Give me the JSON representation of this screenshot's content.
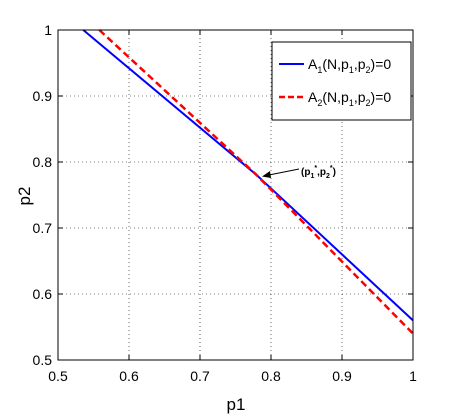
{
  "chart_data": {
    "type": "line",
    "title": "",
    "xlabel": "p1",
    "ylabel": "p2",
    "xlim": [
      0.5,
      1
    ],
    "ylim": [
      0.5,
      1
    ],
    "xticks": [
      "0.5",
      "0.6",
      "0.7",
      "0.8",
      "0.9",
      "1"
    ],
    "yticks": [
      "0.5",
      "0.6",
      "0.7",
      "0.8",
      "0.9",
      "1"
    ],
    "grid": true,
    "legend_position": "top-right",
    "series": [
      {
        "name": "A1(N,p1,p2)=0",
        "color": "#0000ff",
        "style": "solid",
        "x": [
          0.5356,
          0.78,
          1.0
        ],
        "y": [
          1.0,
          0.78,
          0.56
        ]
      },
      {
        "name": "A2(N,p1,p2)=0",
        "color": "#ff0000",
        "style": "dashed",
        "x": [
          0.5582,
          0.78,
          1.0
        ],
        "y": [
          1.0,
          0.78,
          0.54
        ]
      }
    ],
    "annotation": {
      "text": "(p1*,p2*)",
      "x": 0.78,
      "y": 0.78
    }
  }
}
